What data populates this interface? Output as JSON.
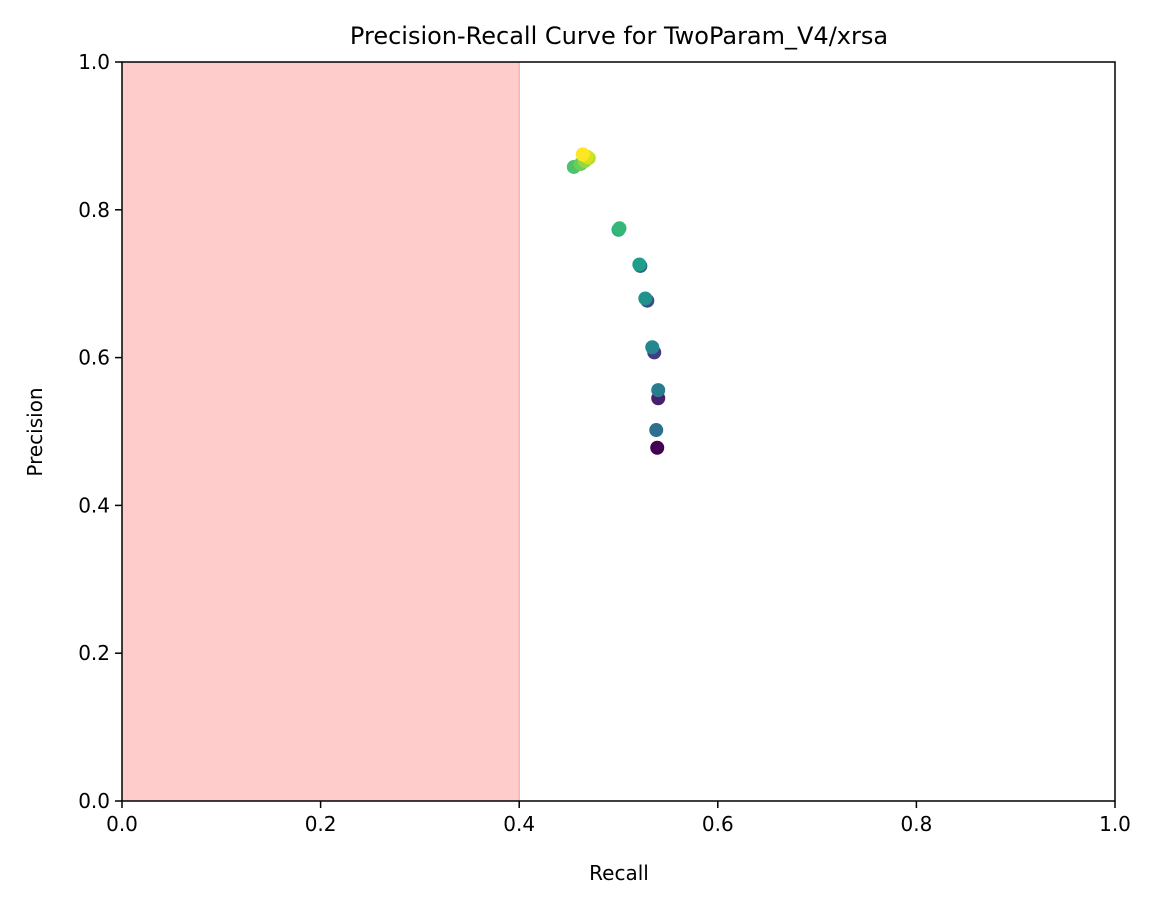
{
  "chart_data": {
    "type": "scatter",
    "title": "Precision-Recall Curve for TwoParam_V4/xrsa",
    "xlabel": "Recall",
    "ylabel": "Precision",
    "xlim": [
      0.0,
      1.0
    ],
    "ylim": [
      0.0,
      1.0
    ],
    "xticks": [
      "0.0",
      "0.2",
      "0.4",
      "0.6",
      "0.8",
      "1.0"
    ],
    "yticks": [
      "0.0",
      "0.2",
      "0.4",
      "0.6",
      "0.8",
      "1.0"
    ],
    "grid": false,
    "shaded_region": {
      "x_start": 0.0,
      "x_end": 0.4,
      "color": "#ffcccc"
    },
    "points": [
      {
        "x": 0.539,
        "y": 0.478,
        "color": "#440154"
      },
      {
        "x": 0.54,
        "y": 0.545,
        "color": "#46206f"
      },
      {
        "x": 0.536,
        "y": 0.607,
        "color": "#433c84"
      },
      {
        "x": 0.529,
        "y": 0.677,
        "color": "#3f4a8a"
      },
      {
        "x": 0.522,
        "y": 0.724,
        "color": "#345e8d"
      },
      {
        "x": 0.538,
        "y": 0.502,
        "color": "#2e6e8e"
      },
      {
        "x": 0.54,
        "y": 0.556,
        "color": "#297b8e"
      },
      {
        "x": 0.534,
        "y": 0.614,
        "color": "#24868e"
      },
      {
        "x": 0.527,
        "y": 0.68,
        "color": "#20928c"
      },
      {
        "x": 0.521,
        "y": 0.726,
        "color": "#1f9e89"
      },
      {
        "x": 0.5,
        "y": 0.773,
        "color": "#27ad81"
      },
      {
        "x": 0.501,
        "y": 0.775,
        "color": "#35b779"
      },
      {
        "x": 0.455,
        "y": 0.858,
        "color": "#4ec36b"
      },
      {
        "x": 0.462,
        "y": 0.862,
        "color": "#6ccd5a"
      },
      {
        "x": 0.466,
        "y": 0.866,
        "color": "#8fd744"
      },
      {
        "x": 0.47,
        "y": 0.87,
        "color": "#b5de2b"
      },
      {
        "x": 0.468,
        "y": 0.872,
        "color": "#d8e219"
      },
      {
        "x": 0.464,
        "y": 0.875,
        "color": "#fde725"
      }
    ]
  }
}
